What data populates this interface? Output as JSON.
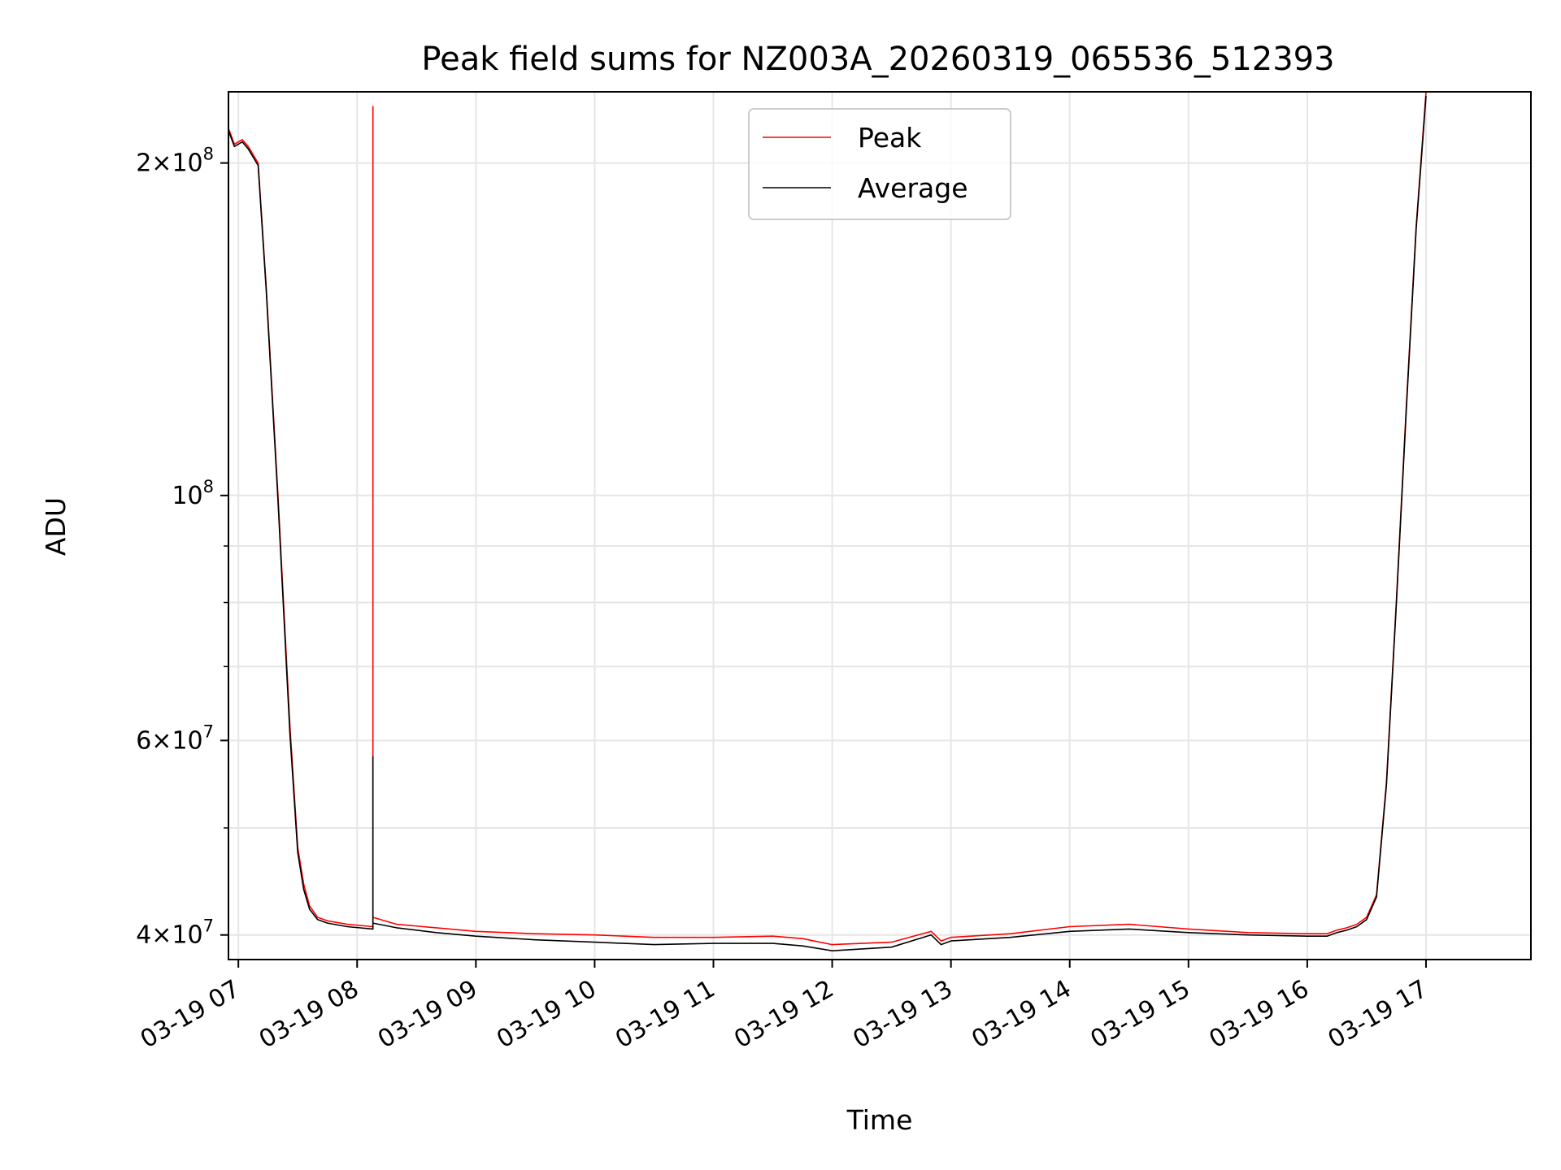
{
  "chart_data": {
    "type": "line",
    "title": "Peak field sums for NZ003A_20260319_065536_512393",
    "xlabel": "Time",
    "ylabel": "ADU",
    "y_scale": "log",
    "ylim": [
      38000000,
      232000000
    ],
    "xlim": [
      "2026-03-19 06:55",
      "2026-03-19 17:53"
    ],
    "grid": true,
    "legend_position": "upper center",
    "x_tick_labels": [
      "03-19 07",
      "03-19 08",
      "03-19 09",
      "03-19 10",
      "03-19 11",
      "03-19 12",
      "03-19 13",
      "03-19 14",
      "03-19 15",
      "03-19 16",
      "03-19 17"
    ],
    "x_ticks": [
      "2026-03-19 07:00",
      "2026-03-19 08:00",
      "2026-03-19 09:00",
      "2026-03-19 10:00",
      "2026-03-19 11:00",
      "2026-03-19 12:00",
      "2026-03-19 13:00",
      "2026-03-19 14:00",
      "2026-03-19 15:00",
      "2026-03-19 16:00",
      "2026-03-19 17:00"
    ],
    "y_ticks": [
      {
        "value": 40000000,
        "mantissa": "4",
        "exponent": "7"
      },
      {
        "value": 60000000,
        "mantissa": "6",
        "exponent": "7"
      },
      {
        "value": 100000000,
        "mantissa": "",
        "exponent": "8"
      },
      {
        "value": 200000000,
        "mantissa": "2",
        "exponent": "8"
      }
    ],
    "y_minor_ticks": [
      50000000,
      70000000,
      80000000,
      90000000
    ],
    "series": [
      {
        "name": "Peak",
        "color": "#ff0000",
        "x": [
          "2026-03-19 06:55",
          "2026-03-19 06:58",
          "2026-03-19 07:02",
          "2026-03-19 07:05",
          "2026-03-19 07:10",
          "2026-03-19 07:14",
          "2026-03-19 07:20",
          "2026-03-19 07:26",
          "2026-03-19 07:30",
          "2026-03-19 07:33",
          "2026-03-19 07:36",
          "2026-03-19 07:40",
          "2026-03-19 07:45",
          "2026-03-19 07:55",
          "2026-03-19 08:08",
          "2026-03-19 08:08",
          "2026-03-19 08:08",
          "2026-03-19 08:20",
          "2026-03-19 08:40",
          "2026-03-19 09:00",
          "2026-03-19 09:30",
          "2026-03-19 10:00",
          "2026-03-19 10:30",
          "2026-03-19 11:00",
          "2026-03-19 11:30",
          "2026-03-19 11:45",
          "2026-03-19 12:00",
          "2026-03-19 12:30",
          "2026-03-19 12:50",
          "2026-03-19 12:55",
          "2026-03-19 13:00",
          "2026-03-19 13:30",
          "2026-03-19 14:00",
          "2026-03-19 14:30",
          "2026-03-19 15:00",
          "2026-03-19 15:30",
          "2026-03-19 16:00",
          "2026-03-19 16:10",
          "2026-03-19 16:15",
          "2026-03-19 16:20",
          "2026-03-19 16:25",
          "2026-03-19 16:30",
          "2026-03-19 16:35",
          "2026-03-19 16:40",
          "2026-03-19 16:45",
          "2026-03-19 16:50",
          "2026-03-19 16:55",
          "2026-03-19 17:00"
        ],
        "y": [
          215000000,
          208000000,
          210000000,
          207000000,
          200000000,
          155000000,
          100000000,
          62000000,
          48000000,
          44500000,
          42500000,
          41500000,
          41200000,
          40900000,
          40700000,
          225000000,
          41500000,
          40900000,
          40600000,
          40300000,
          40100000,
          40000000,
          39800000,
          39800000,
          39900000,
          39700000,
          39200000,
          39400000,
          40300000,
          39500000,
          39800000,
          40100000,
          40700000,
          40900000,
          40500000,
          40200000,
          40100000,
          40100000,
          40400000,
          40600000,
          40900000,
          41500000,
          43500000,
          55000000,
          80000000,
          120000000,
          175000000,
          232000000
        ]
      },
      {
        "name": "Average",
        "color": "#000000",
        "x": [
          "2026-03-19 06:55",
          "2026-03-19 06:58",
          "2026-03-19 07:02",
          "2026-03-19 07:05",
          "2026-03-19 07:10",
          "2026-03-19 07:14",
          "2026-03-19 07:20",
          "2026-03-19 07:26",
          "2026-03-19 07:30",
          "2026-03-19 07:33",
          "2026-03-19 07:36",
          "2026-03-19 07:40",
          "2026-03-19 07:45",
          "2026-03-19 07:55",
          "2026-03-19 08:08",
          "2026-03-19 08:08",
          "2026-03-19 08:08",
          "2026-03-19 08:20",
          "2026-03-19 08:40",
          "2026-03-19 09:00",
          "2026-03-19 09:30",
          "2026-03-19 10:00",
          "2026-03-19 10:30",
          "2026-03-19 11:00",
          "2026-03-19 11:30",
          "2026-03-19 11:45",
          "2026-03-19 12:00",
          "2026-03-19 12:30",
          "2026-03-19 12:50",
          "2026-03-19 12:55",
          "2026-03-19 13:00",
          "2026-03-19 13:30",
          "2026-03-19 14:00",
          "2026-03-19 14:30",
          "2026-03-19 15:00",
          "2026-03-19 15:30",
          "2026-03-19 16:00",
          "2026-03-19 16:10",
          "2026-03-19 16:15",
          "2026-03-19 16:20",
          "2026-03-19 16:25",
          "2026-03-19 16:30",
          "2026-03-19 16:35",
          "2026-03-19 16:40",
          "2026-03-19 16:45",
          "2026-03-19 16:50",
          "2026-03-19 16:55",
          "2026-03-19 17:00"
        ],
        "y": [
          214000000,
          207000000,
          209000000,
          206000000,
          199000000,
          154000000,
          99000000,
          61000000,
          47500000,
          44000000,
          42200000,
          41300000,
          41000000,
          40700000,
          40500000,
          58000000,
          41000000,
          40600000,
          40200000,
          39900000,
          39600000,
          39400000,
          39200000,
          39300000,
          39300000,
          39100000,
          38700000,
          39000000,
          40000000,
          39200000,
          39500000,
          39800000,
          40300000,
          40500000,
          40200000,
          40000000,
          39900000,
          39900000,
          40200000,
          40400000,
          40700000,
          41300000,
          43300000,
          54700000,
          79500000,
          119000000,
          174000000,
          230000000
        ]
      }
    ]
  }
}
